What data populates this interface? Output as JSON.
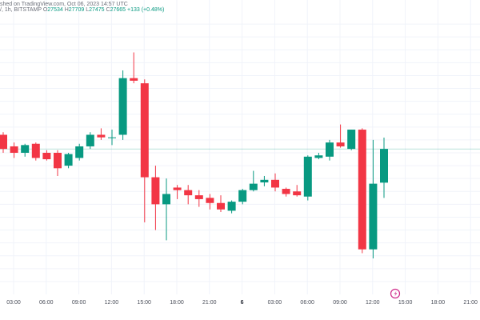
{
  "header": {
    "published": "shed on TradingView.com, Oct 06, 2023 14:57 UTC",
    "line2_prefix": "/, 1h, BITSTAMP",
    "ohlc": [
      {
        "key": "O",
        "value": "27534"
      },
      {
        "key": "H",
        "value": "27709"
      },
      {
        "key": "L",
        "value": "27475"
      },
      {
        "key": "C",
        "value": "27665"
      }
    ],
    "change": "+133 (+0.48%)"
  },
  "colors": {
    "up": "#089981",
    "down": "#f23645",
    "grid": "#f0f3fa",
    "price_line": "#089981",
    "axis_text": "#4a4e59"
  },
  "chart_data": {
    "type": "candlestick",
    "title": "",
    "xlabel": "",
    "ylabel": "",
    "x_tick_labels": [
      {
        "label": "03:00",
        "bold": false
      },
      {
        "label": "06:00",
        "bold": false
      },
      {
        "label": "09:00",
        "bold": false
      },
      {
        "label": "12:00",
        "bold": false
      },
      {
        "label": "15:00",
        "bold": false
      },
      {
        "label": "18:00",
        "bold": false
      },
      {
        "label": "21:00",
        "bold": false
      },
      {
        "label": "6",
        "bold": true
      },
      {
        "label": "03:00",
        "bold": false
      },
      {
        "label": "06:00",
        "bold": false
      },
      {
        "label": "09:00",
        "bold": false
      },
      {
        "label": "12:00",
        "bold": false
      },
      {
        "label": "15:00",
        "bold": false
      },
      {
        "label": "18:00",
        "bold": false
      },
      {
        "label": "21:00",
        "bold": false
      }
    ],
    "ylim": [
      27100,
      28200
    ],
    "last_close": 27665,
    "candles": [
      {
        "o": 27720,
        "h": 27730,
        "l": 27650,
        "c": 27665
      },
      {
        "o": 27675,
        "h": 27690,
        "l": 27630,
        "c": 27650
      },
      {
        "o": 27650,
        "h": 27685,
        "l": 27635,
        "c": 27680
      },
      {
        "o": 27685,
        "h": 27690,
        "l": 27620,
        "c": 27630
      },
      {
        "o": 27650,
        "h": 27660,
        "l": 27620,
        "c": 27625
      },
      {
        "o": 27650,
        "h": 27660,
        "l": 27560,
        "c": 27590
      },
      {
        "o": 27600,
        "h": 27650,
        "l": 27590,
        "c": 27645
      },
      {
        "o": 27630,
        "h": 27685,
        "l": 27620,
        "c": 27675
      },
      {
        "o": 27675,
        "h": 27730,
        "l": 27665,
        "c": 27720
      },
      {
        "o": 27720,
        "h": 27745,
        "l": 27700,
        "c": 27710
      },
      {
        "o": 27710,
        "h": 27740,
        "l": 27680,
        "c": 27710
      },
      {
        "o": 27720,
        "h": 27970,
        "l": 27700,
        "c": 27940
      },
      {
        "o": 27940,
        "h": 28040,
        "l": 27920,
        "c": 27930
      },
      {
        "o": 27920,
        "h": 27935,
        "l": 27380,
        "c": 27555
      },
      {
        "o": 27555,
        "h": 27600,
        "l": 27350,
        "c": 27450
      },
      {
        "o": 27450,
        "h": 27550,
        "l": 27310,
        "c": 27490
      },
      {
        "o": 27515,
        "h": 27525,
        "l": 27470,
        "c": 27505
      },
      {
        "o": 27505,
        "h": 27525,
        "l": 27450,
        "c": 27485
      },
      {
        "o": 27485,
        "h": 27505,
        "l": 27440,
        "c": 27470
      },
      {
        "o": 27475,
        "h": 27490,
        "l": 27430,
        "c": 27455
      },
      {
        "o": 27455,
        "h": 27485,
        "l": 27420,
        "c": 27430
      },
      {
        "o": 27425,
        "h": 27465,
        "l": 27415,
        "c": 27460
      },
      {
        "o": 27460,
        "h": 27510,
        "l": 27450,
        "c": 27505
      },
      {
        "o": 27505,
        "h": 27580,
        "l": 27500,
        "c": 27530
      },
      {
        "o": 27535,
        "h": 27560,
        "l": 27520,
        "c": 27545
      },
      {
        "o": 27545,
        "h": 27570,
        "l": 27500,
        "c": 27515
      },
      {
        "o": 27510,
        "h": 27515,
        "l": 27480,
        "c": 27490
      },
      {
        "o": 27500,
        "h": 27525,
        "l": 27480,
        "c": 27485
      },
      {
        "o": 27480,
        "h": 27640,
        "l": 27465,
        "c": 27635
      },
      {
        "o": 27630,
        "h": 27650,
        "l": 27625,
        "c": 27640
      },
      {
        "o": 27635,
        "h": 27700,
        "l": 27620,
        "c": 27690
      },
      {
        "o": 27690,
        "h": 27760,
        "l": 27670,
        "c": 27675
      },
      {
        "o": 27665,
        "h": 27740,
        "l": 27660,
        "c": 27740
      },
      {
        "o": 27740,
        "h": 27745,
        "l": 27260,
        "c": 27275
      },
      {
        "o": 27275,
        "h": 27700,
        "l": 27240,
        "c": 27530
      },
      {
        "o": 27534,
        "h": 27709,
        "l": 27475,
        "c": 27665
      }
    ]
  }
}
